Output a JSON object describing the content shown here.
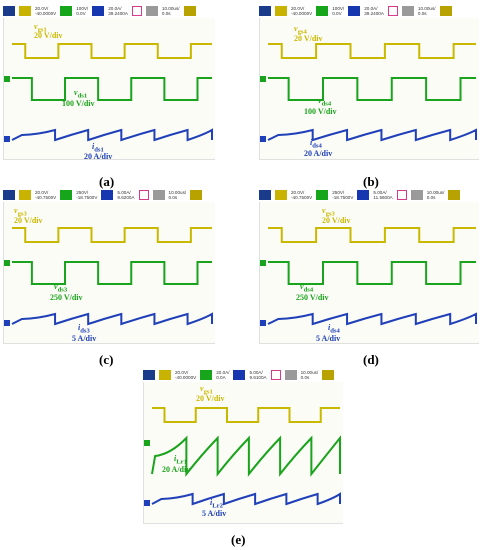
{
  "colors": {
    "yellow": "#c9b800",
    "green": "#1aa31c",
    "blue": "#1f40b8"
  },
  "panels": [
    {
      "id": "a",
      "caption": "(a)",
      "header": [
        [
          "20.0V/",
          "-40.0000V"
        ],
        [
          "100V/",
          "0.0V"
        ],
        [
          "20.0A/",
          "39.2400A"
        ],
        [
          "10.00us/",
          "0.0s"
        ]
      ],
      "labels": {
        "v1": "v",
        "v1sub": "gs1",
        "v1div": "20 V/div",
        "v2": "v",
        "v2sub": "ds1",
        "v2div": "100 V/div",
        "i": "i",
        "isub": "ds1",
        "idiv": "20 A/div"
      }
    },
    {
      "id": "b",
      "caption": "(b)",
      "header": [
        [
          "20.0V/",
          "-40.0000V"
        ],
        [
          "100V/",
          "0.0V"
        ],
        [
          "20.0A/",
          "39.2400A"
        ],
        [
          "10.00us/",
          "0.0s"
        ]
      ],
      "labels": {
        "v1": "v",
        "v1sub": "gs4",
        "v1div": "20 V/div",
        "v2": "v",
        "v2sub": "ds4",
        "v2div": "100 V/div",
        "i": "i",
        "isub": "ds4",
        "idiv": "20 A/div"
      }
    },
    {
      "id": "c",
      "caption": "(c)",
      "header": [
        [
          "20.0V/",
          "-40.7500V"
        ],
        [
          "250V/",
          "-18.7500V"
        ],
        [
          "5.00A/",
          "9.6200A"
        ],
        [
          "10.00us/",
          "0.0s"
        ]
      ],
      "labels": {
        "v1": "v",
        "v1sub": "gs3",
        "v1div": "20 V/div",
        "v2": "v",
        "v2sub": "ds3",
        "v2div": "250 V/div",
        "i": "i",
        "isub": "ds3",
        "idiv": "5 A/div"
      }
    },
    {
      "id": "d",
      "caption": "(d)",
      "header": [
        [
          "20.0V/",
          "-40.7500V"
        ],
        [
          "250V/",
          "-18.7500V"
        ],
        [
          "5.00A/",
          "11.5600A"
        ],
        [
          "10.00us/",
          "0.0s"
        ]
      ],
      "labels": {
        "v1": "v",
        "v1sub": "gs3",
        "v1div": "20 V/div",
        "v2": "v",
        "v2sub": "ds4",
        "v2div": "250 V/div",
        "i": "i",
        "isub": "ds4",
        "idiv": "5 A/div"
      }
    },
    {
      "id": "e",
      "caption": "(e)",
      "header": [
        [
          "20.0V/",
          "-40.0000V"
        ],
        [
          "20.0A/",
          "0.0A"
        ],
        [
          "5.00A/",
          "9.6100A"
        ],
        [
          "10.00us/",
          "0.0s"
        ]
      ],
      "labels": {
        "v1": "v",
        "v1sub": "gs1",
        "v1div": "20 V/div",
        "v2": "i",
        "v2sub": "Lr1",
        "v2div": "20 A/div",
        "i": "i",
        "isub": "Lr2",
        "idiv": "5 A/div"
      }
    }
  ]
}
